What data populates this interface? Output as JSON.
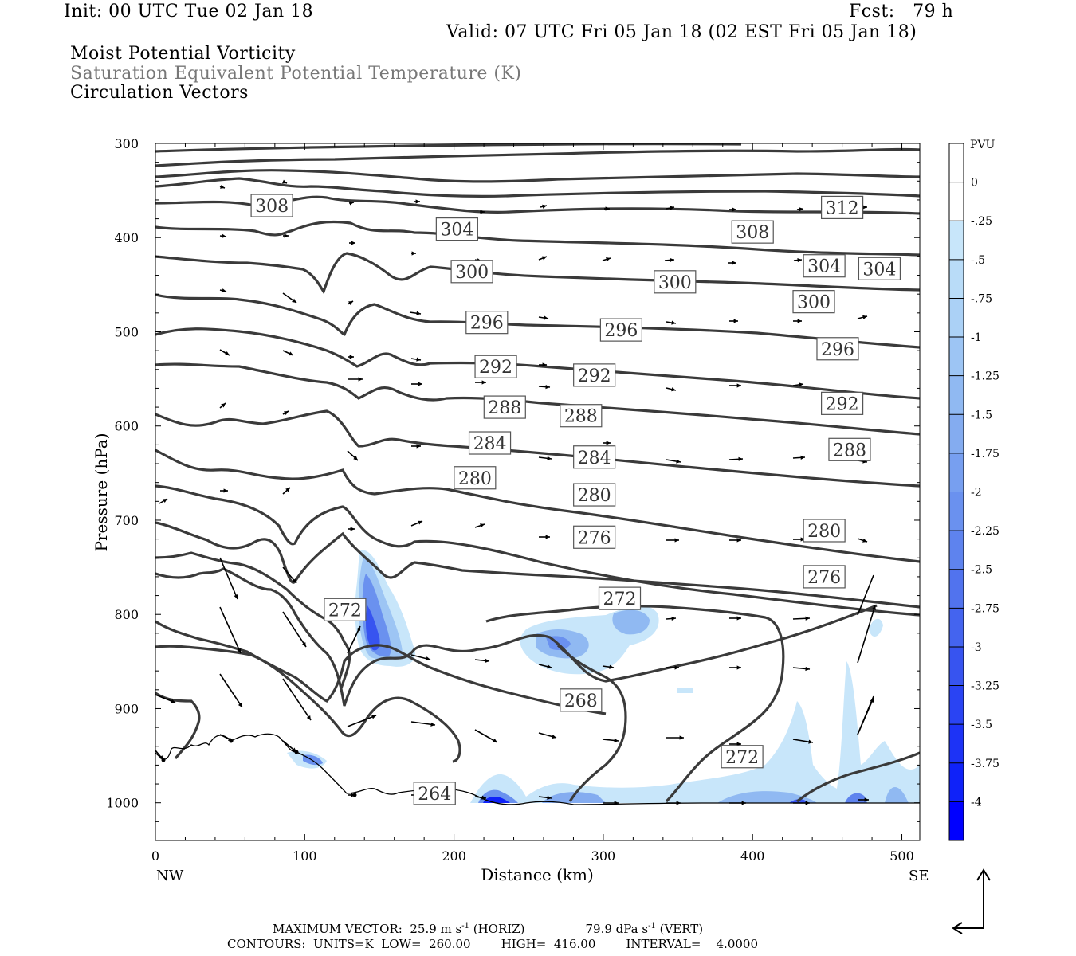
{
  "header": {
    "init": "Init: 00 UTC Tue 02 Jan 18",
    "fcst": "Fcst:   79 h",
    "valid": "Valid: 07 UTC Fri 05 Jan 18 (02 EST Fri 05 Jan 18)",
    "field1": "Moist Potential Vorticity",
    "field2": "Saturation Equivalent Potential Temperature (K)",
    "field3": "Circulation Vectors"
  },
  "footer": {
    "max_vector": "MAXIMUM VECTOR:  25.9 m s",
    "max_vector_exp": "-1",
    "max_vector_horiz": " (HORIZ)",
    "max_vector_vert_val": "79.9 dPa s",
    "max_vector_vert_exp": "-1",
    "max_vector_vert": " (VERT)",
    "contours": "CONTOURS:  UNITS=K  LOW=  260.00        HIGH=  416.00        INTERVAL=    4.0000"
  },
  "colors": {
    "contour": "#3a3a3a",
    "pv_light": "#c6e6fa",
    "pv_dark": "#0000ff",
    "frame": "#000000"
  },
  "chart_data": {
    "type": "contour",
    "xlabel": "Distance (km)",
    "ylabel": "Pressure (hPa)",
    "xlim": [
      0,
      512
    ],
    "ylim": [
      1040,
      300
    ],
    "x_ticks": [
      0,
      100,
      200,
      300,
      400,
      500
    ],
    "y_ticks": [
      300,
      400,
      500,
      600,
      700,
      800,
      900,
      1000
    ],
    "x_end_labels": {
      "left": "NW",
      "right": "SE"
    },
    "colorbar": {
      "unit": "PVU",
      "levels": [
        "0",
        "-.25",
        "-.5",
        "-.75",
        "-1",
        "-1.25",
        "-1.5",
        "-1.75",
        "-2",
        "-2.25",
        "-2.5",
        "-2.75",
        "-3",
        "-3.25",
        "-3.5",
        "-3.75",
        "-4"
      ],
      "colors": [
        "#ffffff",
        "#ffffff",
        "#c8e6fa",
        "#b9dcf8",
        "#abd1f6",
        "#9dc5f4",
        "#90b9f2",
        "#84acf0",
        "#779ff0",
        "#6a91ef",
        "#5e83ee",
        "#5173ee",
        "#4464ef",
        "#3754f0",
        "#2a44f3",
        "#1d33f6",
        "#0f22f9",
        "#0000ff"
      ]
    },
    "contour_labels": [
      {
        "text": "308",
        "x": 78,
        "p": 366
      },
      {
        "text": "304",
        "x": 202,
        "p": 391
      },
      {
        "text": "300",
        "x": 212,
        "p": 436
      },
      {
        "text": "296",
        "x": 222,
        "p": 490
      },
      {
        "text": "292",
        "x": 228,
        "p": 537
      },
      {
        "text": "288",
        "x": 234,
        "p": 580
      },
      {
        "text": "284",
        "x": 224,
        "p": 618
      },
      {
        "text": "280",
        "x": 214,
        "p": 655
      },
      {
        "text": "304",
        "x": 0,
        "p": 0
      },
      {
        "text": "300",
        "x": 348,
        "p": 447
      },
      {
        "text": "296",
        "x": 312,
        "p": 498
      },
      {
        "text": "292",
        "x": 294,
        "p": 546
      },
      {
        "text": "288",
        "x": 285,
        "p": 589
      },
      {
        "text": "284",
        "x": 294,
        "p": 633
      },
      {
        "text": "280",
        "x": 294,
        "p": 673
      },
      {
        "text": "276",
        "x": 294,
        "p": 718
      },
      {
        "text": "272",
        "x": 311,
        "p": 783
      },
      {
        "text": "272",
        "x": 127,
        "p": 795
      },
      {
        "text": "268",
        "x": 285,
        "p": 891
      },
      {
        "text": "264",
        "x": 187,
        "p": 990
      },
      {
        "text": "272",
        "x": 393,
        "p": 951
      },
      {
        "text": "308",
        "x": 400,
        "p": 394
      },
      {
        "text": "304",
        "x": 448,
        "p": 430
      },
      {
        "text": "300",
        "x": 441,
        "p": 468
      },
      {
        "text": "296",
        "x": 457,
        "p": 518
      },
      {
        "text": "292",
        "x": 460,
        "p": 576
      },
      {
        "text": "288",
        "x": 465,
        "p": 625
      },
      {
        "text": "280",
        "x": 448,
        "p": 711
      },
      {
        "text": "276",
        "x": 448,
        "p": 760
      },
      {
        "text": "312",
        "x": 460,
        "p": 368
      },
      {
        "text": "304",
        "x": 485,
        "p": 433
      }
    ]
  }
}
